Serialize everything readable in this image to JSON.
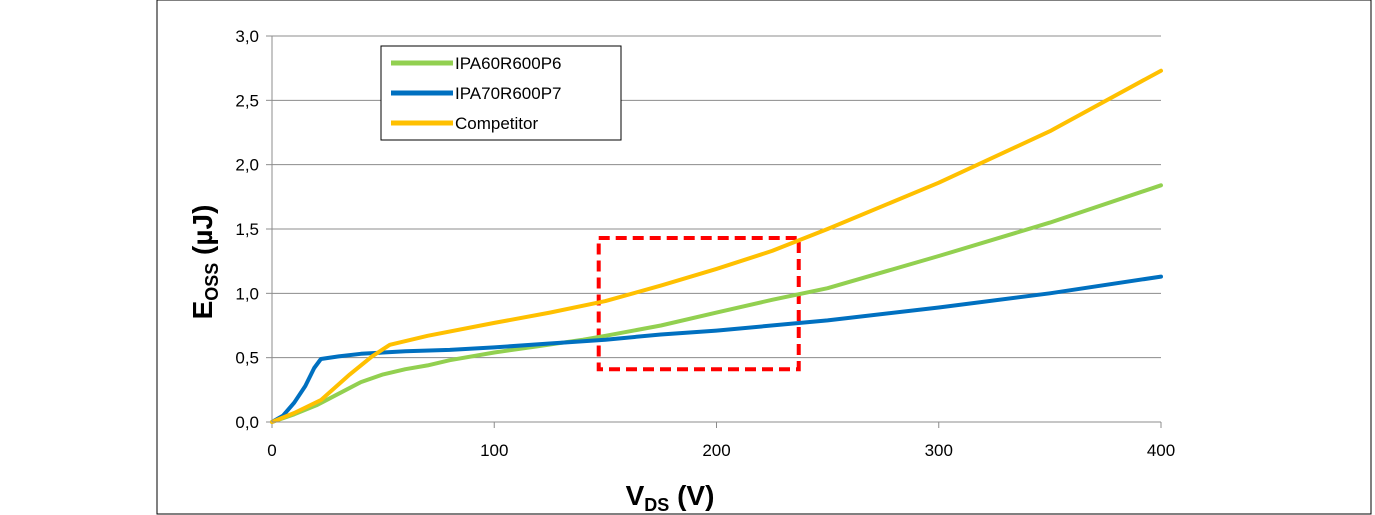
{
  "chart_data": {
    "type": "line",
    "xlabel": {
      "main": "V",
      "sub": "DS",
      "suffix": " (V)"
    },
    "ylabel": {
      "main": "E",
      "sub": "OSS",
      "suffix": " (µJ)"
    },
    "xlim": [
      0,
      400
    ],
    "ylim": [
      0,
      3.0
    ],
    "x_ticks": [
      {
        "value": 0,
        "label": "0"
      },
      {
        "value": 100,
        "label": "100"
      },
      {
        "value": 200,
        "label": "200"
      },
      {
        "value": 300,
        "label": "300"
      },
      {
        "value": 400,
        "label": "400"
      }
    ],
    "y_ticks": [
      {
        "value": 0,
        "label": "0,0"
      },
      {
        "value": 0.5,
        "label": "0,5"
      },
      {
        "value": 1.0,
        "label": "1,0"
      },
      {
        "value": 1.5,
        "label": "1,5"
      },
      {
        "value": 2.0,
        "label": "2,0"
      },
      {
        "value": 2.5,
        "label": "2,5"
      },
      {
        "value": 3.0,
        "label": "3,0"
      }
    ],
    "grid": "horizontal",
    "legend_position": "top-left",
    "series": [
      {
        "name": "IPA60R600P6",
        "color": "#92d050",
        "points": [
          [
            0,
            0
          ],
          [
            10,
            0.06
          ],
          [
            20,
            0.13
          ],
          [
            30,
            0.22
          ],
          [
            40,
            0.31
          ],
          [
            50,
            0.37
          ],
          [
            60,
            0.41
          ],
          [
            70,
            0.44
          ],
          [
            80,
            0.48
          ],
          [
            100,
            0.54
          ],
          [
            120,
            0.59
          ],
          [
            140,
            0.64
          ],
          [
            150,
            0.67
          ],
          [
            175,
            0.75
          ],
          [
            200,
            0.85
          ],
          [
            225,
            0.95
          ],
          [
            250,
            1.04
          ],
          [
            300,
            1.29
          ],
          [
            350,
            1.55
          ],
          [
            400,
            1.84
          ]
        ]
      },
      {
        "name": "IPA70R600P7",
        "color": "#0070c0",
        "points": [
          [
            0,
            0
          ],
          [
            5,
            0.05
          ],
          [
            10,
            0.15
          ],
          [
            15,
            0.28
          ],
          [
            19,
            0.42
          ],
          [
            22,
            0.49
          ],
          [
            30,
            0.51
          ],
          [
            40,
            0.53
          ],
          [
            60,
            0.55
          ],
          [
            80,
            0.56
          ],
          [
            100,
            0.58
          ],
          [
            125,
            0.61
          ],
          [
            150,
            0.64
          ],
          [
            175,
            0.68
          ],
          [
            200,
            0.71
          ],
          [
            250,
            0.79
          ],
          [
            300,
            0.89
          ],
          [
            350,
            1.0
          ],
          [
            400,
            1.13
          ]
        ]
      },
      {
        "name": "Competitor",
        "color": "#ffc000",
        "points": [
          [
            0,
            0
          ],
          [
            10,
            0.07
          ],
          [
            22,
            0.17
          ],
          [
            35,
            0.37
          ],
          [
            45,
            0.51
          ],
          [
            53,
            0.6
          ],
          [
            70,
            0.67
          ],
          [
            100,
            0.77
          ],
          [
            125,
            0.85
          ],
          [
            150,
            0.94
          ],
          [
            175,
            1.06
          ],
          [
            200,
            1.19
          ],
          [
            225,
            1.33
          ],
          [
            250,
            1.5
          ],
          [
            300,
            1.86
          ],
          [
            350,
            2.26
          ],
          [
            400,
            2.73
          ]
        ]
      }
    ],
    "highlight_box": {
      "color": "#ff0000",
      "x_range": [
        147,
        237
      ],
      "y_range": [
        0.41,
        1.43
      ]
    }
  }
}
